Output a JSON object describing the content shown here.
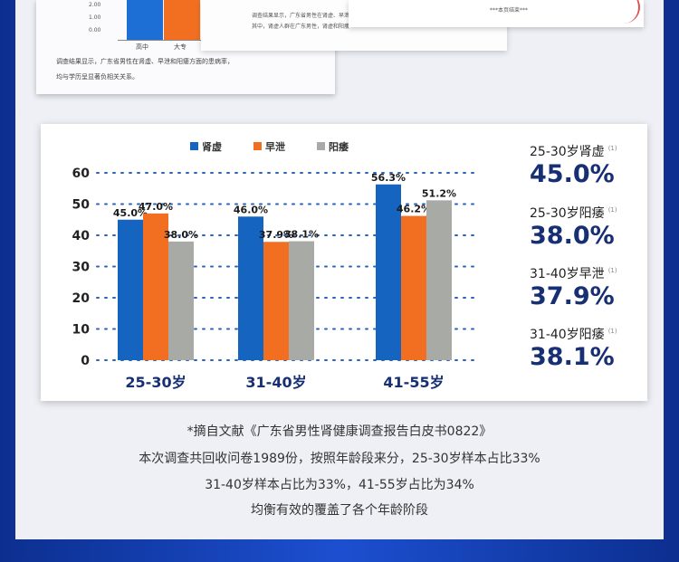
{
  "doc_preview": {
    "tick_labels": [
      "2.00",
      "1.00",
      "0.00"
    ],
    "categories": [
      "高中",
      "大专"
    ],
    "text_lines": [
      "调查结果显示，广东省男性在肾虚、早泄和阳痿方面的患病率，",
      "均与学历呈显著负相关关系。"
    ],
    "right_text_lines": [
      "调查结果显示，广东省男性在肾虚、早泄和阳痿",
      "其中，肾虚人群在广东男性，肾虚和阳痿"
    ],
    "end_marker": "***本页结束***"
  },
  "legend": [
    {
      "label": "肾虚",
      "color": "#1565c0"
    },
    {
      "label": "早泄",
      "color": "#f26f21"
    },
    {
      "label": "阳痿",
      "color": "#a8aaa6"
    }
  ],
  "chart_data": {
    "type": "bar",
    "categories": [
      "25-30岁",
      "31-40岁",
      "41-55岁"
    ],
    "series": [
      {
        "name": "肾虚",
        "values": [
          45.0,
          46.0,
          56.3
        ],
        "labels": [
          "45.0%",
          "46.0%",
          "56.3%"
        ],
        "color": "#1565c0"
      },
      {
        "name": "早泄",
        "values": [
          47.0,
          37.9,
          46.2
        ],
        "labels": [
          "47.0%",
          "37.9%",
          "46.2%"
        ],
        "color": "#f26f21"
      },
      {
        "name": "阳痿",
        "values": [
          38.0,
          38.1,
          51.2
        ],
        "labels": [
          "38.0%",
          "38.1%",
          "51.2%"
        ],
        "color": "#a8aaa6"
      }
    ],
    "yticks": [
      0,
      10,
      20,
      30,
      40,
      50,
      60
    ],
    "ylim": [
      0,
      60
    ],
    "grid": true,
    "legend_position": "top-center"
  },
  "side_stats": [
    {
      "label": "25-30岁肾虚",
      "note": "(1)",
      "value": "45.0%"
    },
    {
      "label": "25-30岁阳痿",
      "note": "(1)",
      "value": "38.0%"
    },
    {
      "label": "31-40岁早泄",
      "note": "(1)",
      "value": "37.9%"
    },
    {
      "label": "31-40岁阳痿",
      "note": "(1)",
      "value": "38.1%"
    }
  ],
  "footnotes": [
    "*摘自文献《广东省男性肾健康调查报告白皮书0822》",
    "本次调查共回收问卷1989份，按照年龄段来分，25-30岁样本占比33%",
    "31-40岁样本占比为33%，41-55岁占比为34%",
    "均衡有效的覆盖了各个年龄阶段"
  ]
}
